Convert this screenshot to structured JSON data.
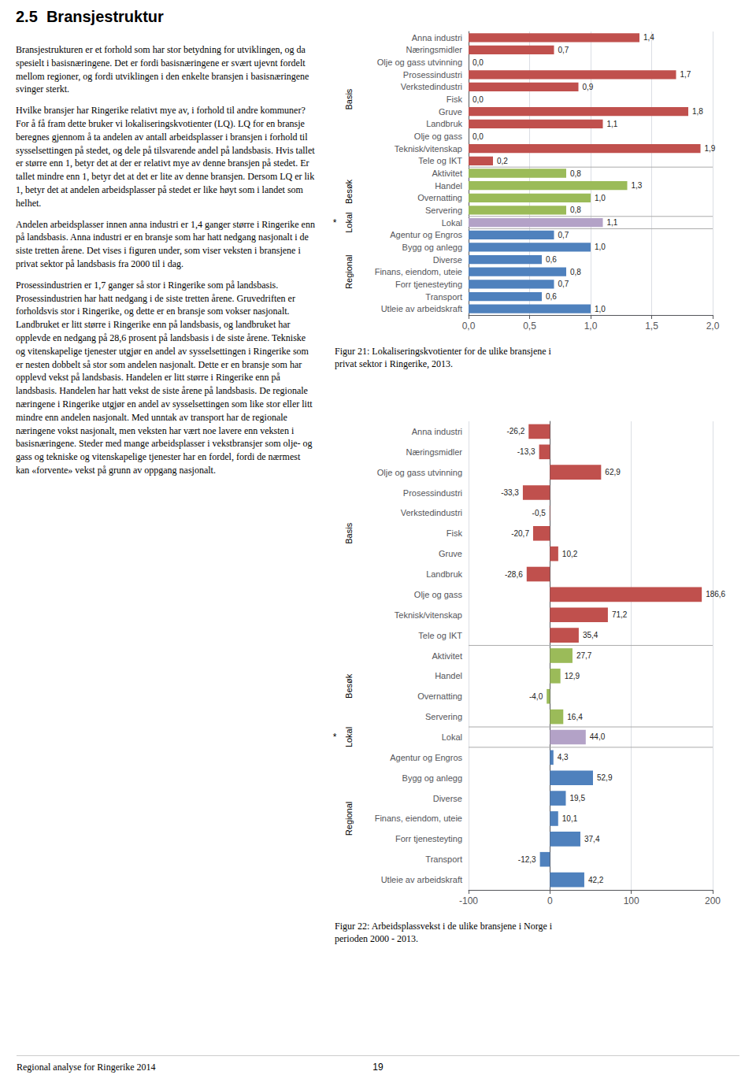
{
  "title": "2.5  Bransjestruktur",
  "text": [
    "Bransjestrukturen er et forhold som har stor betydning for utviklingen, og da spesielt i basisnæringene. Det er fordi basisnæringene er svært ujevnt fordelt mellom regioner, og fordi utviklingen i den enkelte bransjen i basisnæringene svinger sterkt.",
    "Hvilke bransjer har Ringerike relativt mye av, i forhold til andre kommuner? For å få fram dette bruker vi lokaliseringskvotienter (LQ). LQ for en bransje beregnes gjennom å ta andelen av antall arbeidsplasser i bransjen i forhold til sysselsettingen på stedet, og dele på tilsvarende andel på landsbasis. Hvis tallet er større enn 1, betyr det at der er relativt mye av denne bransjen på stedet. Er tallet mindre enn 1, betyr det at det er lite av denne bransjen. Dersom LQ er lik 1, betyr det at andelen arbeidsplasser på stedet er like høyt som i landet som helhet.",
    "Andelen arbeidsplasser innen anna industri er 1,4 ganger større i Ringerike enn på landsbasis. Anna industri er en bransje som har hatt nedgang nasjonalt i de siste tretten årene. Det vises i figuren under, som viser veksten i bransjene i privat sektor på landsbasis fra 2000 til i dag.",
    "Prosessindustrien er 1,7 ganger så stor i Ringerike som på landsbasis. Prosessindustrien har hatt nedgang i de siste tretten årene. Gruvedriften er forholdsvis stor i Ringerike, og dette er en bransje som vokser nasjonalt. Landbruket er litt større i Ringerike enn på landsbasis, og landbruket har opplevde en nedgang på 28,6 prosent på landsbasis i de siste årene. Tekniske og vitenskapelige tjenester utgjør en andel av sysselsettingen i Ringerike som er nesten dobbelt så stor som andelen nasjonalt. Dette er en bransje som har opplevd vekst på landsbasis. Handelen er litt større i Ringerike enn på landsbasis. Handelen har hatt vekst de siste årene på landsbasis. De regionale næringene i Ringerike utgjør en andel av sysselsettingen som like stor eller litt mindre enn andelen nasjonalt. Med unntak av transport har de regionale næringene vokst nasjonalt, men veksten har vært noe lavere enn veksten i basisnæringene. Steder med mange arbeidsplasser i vekstbransjer som olje- og gass og tekniske og vitenskapelige tjenester har en fordel, fordi de nærmest kan «forvente» vekst på grunn av oppgang nasjonalt."
  ],
  "footer": [
    "Regional analyse for Ringerike 2014",
    "19"
  ],
  "chart_data": [
    {
      "type": "bar",
      "orientation": "horizontal",
      "title": "Figur 21: Lokaliseringskvotienter for de ulike bransjene i\nprivat sektor i Ringerike, 2013.",
      "categories": [
        "Anna industri",
        "Næringsmidler",
        "Olje og gass utvinning",
        "Prosessindustri",
        "Verkstedindustri",
        "Fisk",
        "Gruve",
        "Landbruk",
        "Olje og gass",
        "Teknisk/vitenskap",
        "Tele og IKT",
        "Aktivitet",
        "Handel",
        "Overnatting",
        "Servering",
        "Lokal",
        "Agentur og Engros",
        "Bygg og anlegg",
        "Diverse",
        "Finans, eiendom, uteie",
        "Forr tjenesteyting",
        "Transport",
        "Utleie av arbeidskraft"
      ],
      "values": [
        1.4,
        0.7,
        0.0,
        1.7,
        0.9,
        0.0,
        1.8,
        1.1,
        0.0,
        1.9,
        0.2,
        0.8,
        1.3,
        1.0,
        0.8,
        1.1,
        0.7,
        1.0,
        0.6,
        0.8,
        0.7,
        0.6,
        1.0
      ],
      "value_labels": [
        "1,4",
        "0,7",
        "0,0",
        "1,7",
        "0,9",
        "0,0",
        "1,8",
        "1,1",
        "0,0",
        "1,9",
        "0,2",
        "0,8",
        "1,3",
        "1,0",
        "0,8",
        "1,1",
        "0,7",
        "1,0",
        "0,6",
        "0,8",
        "0,7",
        "0,6",
        "1,0"
      ],
      "groups": [
        "Basis",
        "Basis",
        "Basis",
        "Basis",
        "Basis",
        "Basis",
        "Basis",
        "Basis",
        "Basis",
        "Basis",
        "Basis",
        "Besøk",
        "Besøk",
        "Besøk",
        "Besøk",
        "Lokal",
        "Regional",
        "Regional",
        "Regional",
        "Regional",
        "Regional",
        "Regional",
        "Regional"
      ],
      "colors": [
        "#c0504d",
        "#c0504d",
        "#c0504d",
        "#c0504d",
        "#c0504d",
        "#c0504d",
        "#c0504d",
        "#c0504d",
        "#c0504d",
        "#c0504d",
        "#c0504d",
        "#9bbb59",
        "#9bbb59",
        "#9bbb59",
        "#9bbb59",
        "#b3a2c7",
        "#4f81bd",
        "#4f81bd",
        "#4f81bd",
        "#4f81bd",
        "#4f81bd",
        "#4f81bd",
        "#4f81bd"
      ],
      "annotations": [
        {
          "text": "*",
          "group": "Lokal"
        }
      ],
      "xlim": [
        0.0,
        2.0
      ],
      "xticks": [
        {
          "value": 0.0,
          "label": "0,0"
        },
        {
          "value": 0.5,
          "label": "0,5"
        },
        {
          "value": 1.0,
          "label": "1,0"
        },
        {
          "value": 1.5,
          "label": "1,5"
        },
        {
          "value": 2.0,
          "label": "2,0"
        }
      ],
      "grid": true,
      "data_labels": true
    },
    {
      "type": "bar",
      "orientation": "horizontal",
      "title": "Figur 22: Arbeidsplassvekst i de ulike bransjene i Norge i\nperioden 2000 - 2013.",
      "categories": [
        "Anna industri",
        "Næringsmidler",
        "Olje og gass utvinning",
        "Prosessindustri",
        "Verkstedindustri",
        "Fisk",
        "Gruve",
        "Landbruk",
        "Olje og gass",
        "Teknisk/vitenskap",
        "Tele og IKT",
        "Aktivitet",
        "Handel",
        "Overnatting",
        "Servering",
        "Lokal",
        "Agentur og Engros",
        "Bygg og anlegg",
        "Diverse",
        "Finans, eiendom, uteie",
        "Forr tjenesteyting",
        "Transport",
        "Utleie av arbeidskraft"
      ],
      "values": [
        -26.2,
        -13.3,
        62.9,
        -33.3,
        -0.5,
        -20.7,
        10.2,
        -28.6,
        186.6,
        71.2,
        35.4,
        27.7,
        12.9,
        -4.0,
        16.4,
        44.0,
        4.3,
        52.9,
        19.5,
        10.1,
        37.4,
        -12.3,
        42.2
      ],
      "value_labels": [
        "-26,2",
        "-13,3",
        "62,9",
        "-33,3",
        "-0,5",
        "-20,7",
        "10,2",
        "-28,6",
        "186,6",
        "71,2",
        "35,4",
        "27,7",
        "12,9",
        "-4,0",
        "16,4",
        "44,0",
        "4,3",
        "52,9",
        "19,5",
        "10,1",
        "37,4",
        "-12,3",
        "42,2"
      ],
      "groups": [
        "Basis",
        "Basis",
        "Basis",
        "Basis",
        "Basis",
        "Basis",
        "Basis",
        "Basis",
        "Basis",
        "Basis",
        "Basis",
        "Besøk",
        "Besøk",
        "Besøk",
        "Besøk",
        "Lokal",
        "Regional",
        "Regional",
        "Regional",
        "Regional",
        "Regional",
        "Regional",
        "Regional"
      ],
      "colors": [
        "#c0504d",
        "#c0504d",
        "#c0504d",
        "#c0504d",
        "#c0504d",
        "#c0504d",
        "#c0504d",
        "#c0504d",
        "#c0504d",
        "#c0504d",
        "#c0504d",
        "#9bbb59",
        "#9bbb59",
        "#9bbb59",
        "#9bbb59",
        "#b3a2c7",
        "#4f81bd",
        "#4f81bd",
        "#4f81bd",
        "#4f81bd",
        "#4f81bd",
        "#4f81bd",
        "#4f81bd"
      ],
      "annotations": [
        {
          "text": "*",
          "group": "Lokal"
        }
      ],
      "xlim": [
        -100,
        200
      ],
      "xticks": [
        -100,
        0,
        100,
        200
      ],
      "grid": true,
      "data_labels": true
    }
  ]
}
